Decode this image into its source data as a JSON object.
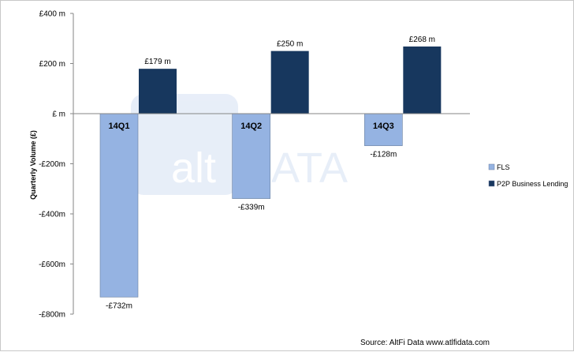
{
  "chart_data": {
    "type": "bar",
    "categories": [
      "14Q1",
      "14Q2",
      "14Q3"
    ],
    "series": [
      {
        "name": "FLS",
        "values": [
          -732,
          -339,
          -128
        ],
        "labels": [
          "-£732m",
          "-£339m",
          "-£128m"
        ],
        "color": "#95b3e2"
      },
      {
        "name": "P2P Business Lending",
        "values": [
          179,
          250,
          268
        ],
        "labels": [
          "£179 m",
          "£250 m",
          "£268 m"
        ],
        "color": "#17375e"
      }
    ],
    "ylabel": "Quarterly Volume (£)",
    "ylim": [
      -800,
      400
    ],
    "yticks": [
      400,
      200,
      0,
      -200,
      -400,
      -600,
      -800
    ],
    "ytick_labels": [
      "£400 m",
      "£200 m",
      "£ m",
      "-£200m",
      "-£400m",
      "-£600m",
      "-£800m"
    ],
    "legend_position": "right",
    "grid": false,
    "watermark": {
      "left": "alt",
      "right": "DATA"
    }
  },
  "footer": {
    "source": "Source: AltFi Data www.atlfidata.com"
  }
}
